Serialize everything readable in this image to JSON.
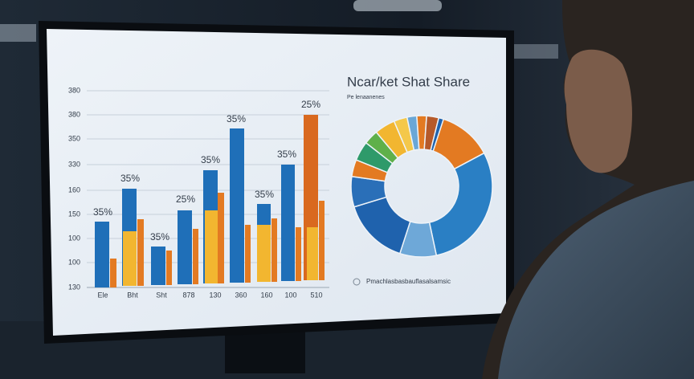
{
  "screen": {
    "title": "Ncar/ket Shat Share",
    "subtitle": "Pe lenaanenes",
    "y_labels": [
      "380",
      "380",
      "350",
      "330",
      "160",
      "150",
      "100",
      "100",
      "130"
    ],
    "x_labels": [
      "Ele",
      "Bht",
      "Sht",
      "878",
      "130",
      "360",
      "160",
      "100",
      "510"
    ],
    "bar_labels": [
      "35%",
      "35%",
      "35%",
      "25%",
      "35%",
      "35%",
      "35%",
      "35%",
      "25%"
    ],
    "caption": "Pmachlasbasbauflasalsamsic"
  }
}
